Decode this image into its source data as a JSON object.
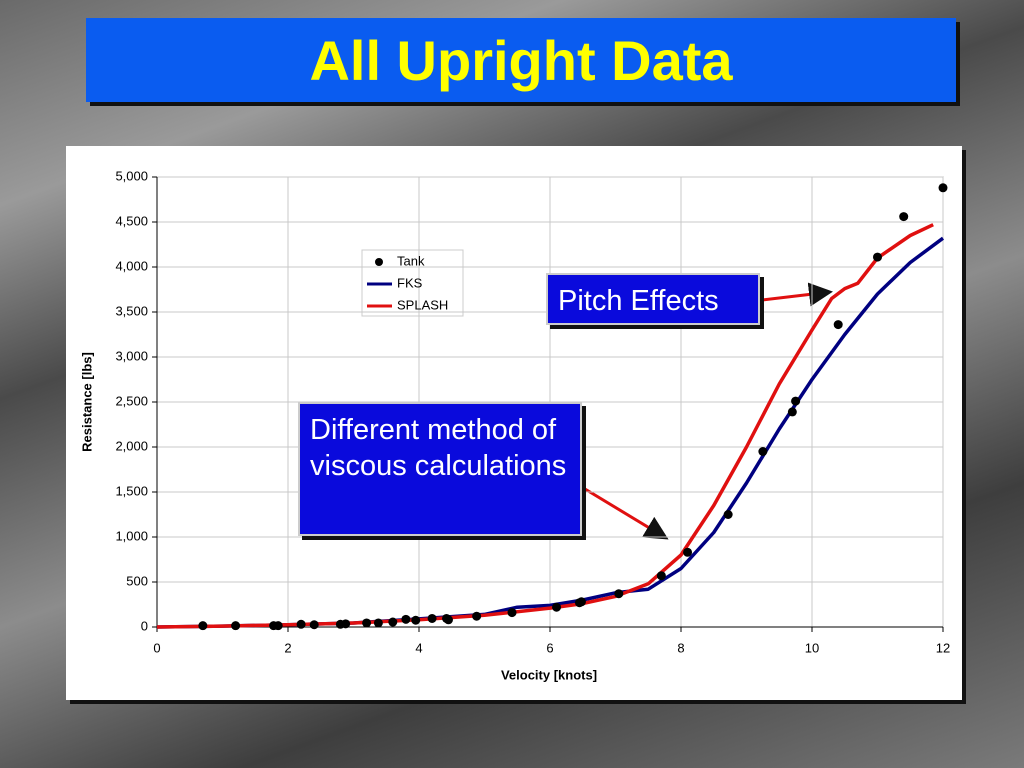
{
  "chart_data": {
    "type": "line",
    "title": "All Upright Data",
    "x_label": "Velocity [knots]",
    "y_label": "Resistance [lbs]",
    "xlim": [
      0,
      12
    ],
    "xticks": [
      0,
      2,
      4,
      6,
      8,
      10,
      12
    ],
    "ylim": [
      0,
      5000
    ],
    "yticks": [
      0,
      500,
      {
        "value": 1000,
        "label": "1,000"
      },
      {
        "value": 1500,
        "label": "1,500"
      },
      {
        "value": 2000,
        "label": "2,000"
      },
      {
        "value": 2500,
        "label": "2,500"
      },
      {
        "value": 3000,
        "label": "3,000"
      },
      {
        "value": 3500,
        "label": "3,500"
      },
      {
        "value": 4000,
        "label": "4,000"
      },
      {
        "value": 4500,
        "label": "4,500"
      },
      {
        "value": 5000,
        "label": "5,000"
      }
    ],
    "grid": true,
    "annotations": [
      "Pitch Effects",
      "Different method of viscous calculations"
    ],
    "series": [
      {
        "name": "Tank",
        "type": "scatter",
        "color": "#000000",
        "x": [
          0.7,
          1.2,
          1.78,
          1.85,
          2.2,
          2.4,
          2.8,
          2.88,
          3.2,
          3.38,
          3.6,
          3.8,
          3.95,
          4.2,
          4.42,
          4.45,
          4.88,
          5.42,
          6.1,
          6.45,
          6.48,
          7.05,
          7.7,
          8.1,
          8.72,
          9.25,
          9.7,
          9.75,
          10.4,
          11,
          11.4,
          12
        ],
        "values": [
          15,
          15,
          15,
          15,
          30,
          25,
          30,
          35,
          45,
          45,
          55,
          85,
          75,
          95,
          95,
          80,
          120,
          160,
          220,
          270,
          280,
          370,
          570,
          830,
          1250,
          1950,
          2390,
          2510,
          3360,
          4110,
          4560,
          4880
        ]
      },
      {
        "name": "FKS",
        "type": "line",
        "color": "#000080",
        "x": [
          0,
          1,
          2,
          3,
          4,
          5,
          5.5,
          6,
          6.5,
          7,
          7.5,
          8,
          8.5,
          9,
          9.5,
          10,
          10.5,
          11,
          11.5,
          12
        ],
        "values": [
          0,
          10,
          25,
          45,
          90,
          140,
          220,
          240,
          300,
          380,
          420,
          650,
          1050,
          1600,
          2200,
          2750,
          3250,
          3700,
          4050,
          4320
        ]
      },
      {
        "name": "SPLASH",
        "type": "line",
        "color": "#e01010",
        "x": [
          0,
          1,
          2,
          3,
          4,
          5,
          6,
          6.5,
          7,
          7.5,
          8,
          8.5,
          9,
          9.5,
          10,
          10.3,
          10.5,
          10.7,
          11,
          11.5,
          11.85
        ],
        "values": [
          0,
          10,
          25,
          45,
          80,
          130,
          210,
          260,
          340,
          480,
          800,
          1350,
          2000,
          2700,
          3300,
          3650,
          3760,
          3820,
          4100,
          4350,
          4470
        ]
      }
    ]
  }
}
